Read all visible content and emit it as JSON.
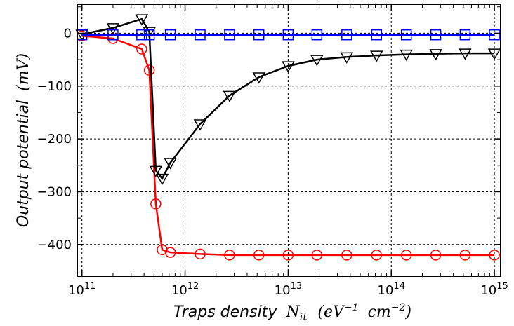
{
  "chart_data": {
    "type": "line",
    "title": "",
    "xlabel": {
      "text": "Traps density",
      "symbol": "N",
      "symbol_sub": "it",
      "units_base": "eV",
      "units_exp1": "−1",
      "units_base2": "cm",
      "units_exp2": "−2"
    },
    "ylabel": {
      "text": "Output potential",
      "units": "mV"
    },
    "xscale": "log",
    "xlim": [
      90000000000.0,
      1150000000000000.0
    ],
    "ylim": [
      -460,
      55
    ],
    "grid": true,
    "x_ticks": [
      {
        "value": 100000000000.0,
        "base": "10",
        "exp": "11"
      },
      {
        "value": 1000000000000.0,
        "base": "10",
        "exp": "12"
      },
      {
        "value": 10000000000000.0,
        "base": "10",
        "exp": "13"
      },
      {
        "value": 100000000000000.0,
        "base": "10",
        "exp": "14"
      },
      {
        "value": 1000000000000000.0,
        "base": "10",
        "exp": "15"
      }
    ],
    "y_ticks": [
      {
        "value": 0,
        "label": "0"
      },
      {
        "value": -100,
        "label": "−100"
      },
      {
        "value": -200,
        "label": "−200"
      },
      {
        "value": -300,
        "label": "−300"
      },
      {
        "value": -400,
        "label": "−400"
      }
    ],
    "series": [
      {
        "marker": "circle",
        "color": "#ff0000",
        "points": [
          [
            100000000000.0,
            -5
          ],
          [
            200000000000.0,
            -10
          ],
          [
            380000000000.0,
            -30
          ],
          [
            450000000000.0,
            -70
          ],
          [
            520000000000.0,
            -323
          ],
          [
            600000000000.0,
            -410
          ],
          [
            720000000000.0,
            -415
          ],
          [
            1400000000000.0,
            -418
          ],
          [
            2700000000000.0,
            -420
          ],
          [
            5200000000000.0,
            -420
          ],
          [
            10000000000000.0,
            -420
          ],
          [
            19000000000000.0,
            -420
          ],
          [
            37000000000000.0,
            -420
          ],
          [
            72000000000000.0,
            -420
          ],
          [
            140000000000000.0,
            -420
          ],
          [
            270000000000000.0,
            -420
          ],
          [
            520000000000000.0,
            -420
          ],
          [
            1000000000000000.0,
            -420
          ]
        ]
      },
      {
        "marker": "triangle-down",
        "color": "#000000",
        "points": [
          [
            100000000000.0,
            -2
          ],
          [
            200000000000.0,
            10
          ],
          [
            380000000000.0,
            27
          ],
          [
            450000000000.0,
            3
          ],
          [
            520000000000.0,
            -260
          ],
          [
            600000000000.0,
            -275
          ],
          [
            720000000000.0,
            -245
          ],
          [
            1400000000000.0,
            -172
          ],
          [
            2700000000000.0,
            -118
          ],
          [
            5200000000000.0,
            -83
          ],
          [
            10000000000000.0,
            -62
          ],
          [
            19000000000000.0,
            -50
          ],
          [
            37000000000000.0,
            -45
          ],
          [
            72000000000000.0,
            -42
          ],
          [
            140000000000000.0,
            -40
          ],
          [
            270000000000000.0,
            -39
          ],
          [
            520000000000000.0,
            -38
          ],
          [
            1000000000000000.0,
            -38
          ]
        ]
      },
      {
        "marker": "square",
        "color": "#0000ff",
        "points": [
          [
            100000000000.0,
            -3
          ],
          [
            200000000000.0,
            -3
          ],
          [
            380000000000.0,
            -3
          ],
          [
            450000000000.0,
            -3
          ],
          [
            720000000000.0,
            -3
          ],
          [
            1400000000000.0,
            -3
          ],
          [
            2700000000000.0,
            -3
          ],
          [
            5200000000000.0,
            -3
          ],
          [
            10000000000000.0,
            -3
          ],
          [
            19000000000000.0,
            -3
          ],
          [
            37000000000000.0,
            -3
          ],
          [
            72000000000000.0,
            -3
          ],
          [
            140000000000000.0,
            -3
          ],
          [
            270000000000000.0,
            -3
          ],
          [
            520000000000000.0,
            -3
          ],
          [
            1000000000000000.0,
            -3
          ]
        ]
      }
    ]
  }
}
